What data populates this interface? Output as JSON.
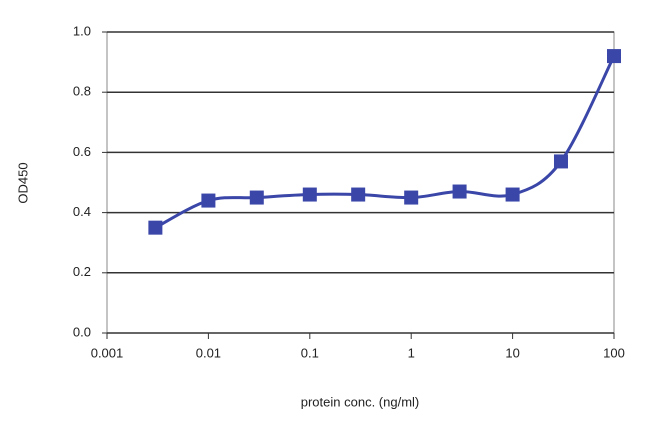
{
  "chart_data": {
    "type": "line",
    "x_label": "protein conc. (ng/ml)",
    "y_label": "OD450",
    "x": [
      0.003,
      0.01,
      0.03,
      0.1,
      0.3,
      1,
      3,
      10,
      30,
      100
    ],
    "values": [
      0.35,
      0.44,
      0.45,
      0.46,
      0.46,
      0.45,
      0.47,
      0.46,
      0.57,
      0.92
    ],
    "color": "#3a46a8",
    "xscale": "log",
    "xlim": [
      0.001,
      100
    ],
    "xticks": [
      0.001,
      0.01,
      0.1,
      1,
      10,
      100
    ],
    "ylim": [
      0,
      1
    ],
    "yticks": [
      {
        "value": 0,
        "label": "0.0"
      },
      0.2,
      0.4,
      0.6,
      0.8,
      {
        "value": 1,
        "label": "1.0"
      }
    ],
    "grid": true
  }
}
